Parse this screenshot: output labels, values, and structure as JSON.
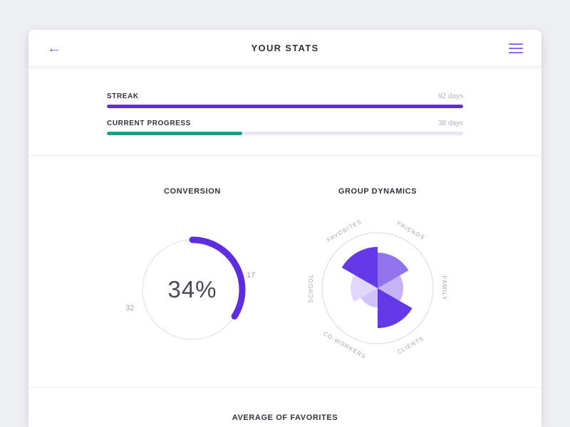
{
  "header": {
    "back_icon": "←",
    "title": "YOUR STATS"
  },
  "progress": [
    {
      "label": "STREAK",
      "value": "92 days",
      "percent": 100,
      "color": "#5e2ddf"
    },
    {
      "label": "CURRENT PROGRESS",
      "value": "38 days",
      "percent": 38,
      "color": "#12a38d"
    }
  ],
  "average": {
    "title": "AVERAGE OF FAVORITES"
  },
  "chart_data": [
    {
      "type": "donut",
      "title": "CONVERSION",
      "center_label": "34%",
      "percent": 34,
      "segment_labels": {
        "right": "17",
        "left": "32"
      },
      "color": "#5e2ddf",
      "ring_color": "#dedde6"
    },
    {
      "type": "rose",
      "title": "GROUP DYNAMICS",
      "base_color": "#6338e6",
      "outline_color": "#d9d8e0",
      "max_radius": 78,
      "series": [
        {
          "label": "FAVORITES",
          "angle": 330,
          "radius": 58,
          "opacity": 1
        },
        {
          "label": "FRIENDS",
          "angle": 30,
          "radius": 50,
          "opacity": 0.7
        },
        {
          "label": "FAMILY",
          "angle": 90,
          "radius": 36,
          "opacity": 0.38
        },
        {
          "label": "CLIENTS",
          "angle": 150,
          "radius": 56,
          "opacity": 1
        },
        {
          "label": "CO-WORKERS",
          "angle": 210,
          "radius": 27,
          "opacity": 0.3
        },
        {
          "label": "SCHOOL",
          "angle": 270,
          "radius": 38,
          "opacity": 0.2
        }
      ]
    }
  ]
}
